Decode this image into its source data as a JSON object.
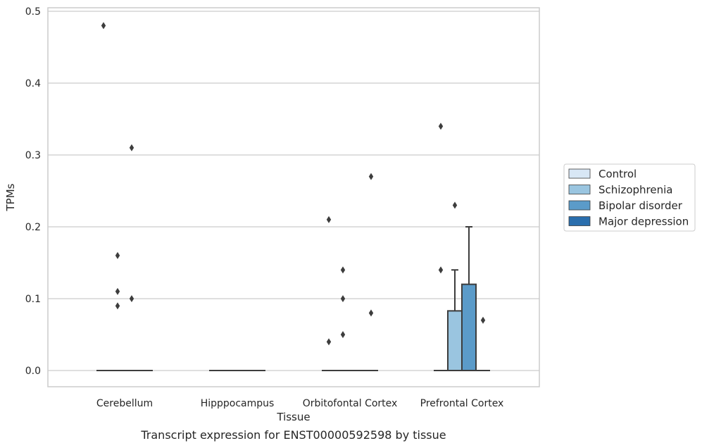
{
  "chart_data": {
    "type": "box",
    "title": "",
    "caption": "Transcript expression for ENST00000592598 by tissue",
    "xlabel": "Tissue",
    "ylabel": "TPMs",
    "categories": [
      "Cerebellum",
      "Hipppocampus",
      "Orbitofontal Cortex",
      "Prefrontal Cortex"
    ],
    "ylim": [
      -0.023,
      0.505
    ],
    "yticks": [
      0.0,
      0.1,
      0.2,
      0.3,
      0.4,
      0.5
    ],
    "ytick_labels": [
      "0.0",
      "0.1",
      "0.2",
      "0.3",
      "0.4",
      "0.5"
    ],
    "grid": true,
    "legend_position": "right",
    "series": [
      {
        "name": "Control",
        "color": "#d8e7f5",
        "boxes": [
          {
            "category": "Cerebellum",
            "q1": 0,
            "median": 0,
            "q3": 0,
            "whisker_low": 0,
            "whisker_high": 0,
            "outliers": [
              0.48
            ]
          },
          {
            "category": "Hipppocampus",
            "q1": 0,
            "median": 0,
            "q3": 0,
            "whisker_low": 0,
            "whisker_high": 0,
            "outliers": []
          },
          {
            "category": "Orbitofontal Cortex",
            "q1": 0,
            "median": 0,
            "q3": 0,
            "whisker_low": 0,
            "whisker_high": 0,
            "outliers": [
              0.04,
              0.21
            ]
          },
          {
            "category": "Prefrontal Cortex",
            "q1": 0,
            "median": 0,
            "q3": 0,
            "whisker_low": 0,
            "whisker_high": 0,
            "outliers": [
              0.14,
              0.34
            ]
          }
        ]
      },
      {
        "name": "Schizophrenia",
        "color": "#9ac5e0",
        "boxes": [
          {
            "category": "Cerebellum",
            "q1": 0,
            "median": 0,
            "q3": 0,
            "whisker_low": 0,
            "whisker_high": 0,
            "outliers": [
              0.09,
              0.11,
              0.16
            ]
          },
          {
            "category": "Hipppocampus",
            "q1": 0,
            "median": 0,
            "q3": 0,
            "whisker_low": 0,
            "whisker_high": 0,
            "outliers": []
          },
          {
            "category": "Orbitofontal Cortex",
            "q1": 0,
            "median": 0,
            "q3": 0,
            "whisker_low": 0,
            "whisker_high": 0,
            "outliers": [
              0.05,
              0.1,
              0.14
            ]
          },
          {
            "category": "Prefrontal Cortex",
            "q1": 0,
            "median": 0,
            "q3": 0.083,
            "whisker_low": 0,
            "whisker_high": 0.14,
            "outliers": [
              0.23
            ]
          }
        ]
      },
      {
        "name": "Bipolar disorder",
        "color": "#5b9bc9",
        "boxes": [
          {
            "category": "Cerebellum",
            "q1": 0,
            "median": 0,
            "q3": 0,
            "whisker_low": 0,
            "whisker_high": 0,
            "outliers": [
              0.1,
              0.31
            ]
          },
          {
            "category": "Hipppocampus",
            "q1": 0,
            "median": 0,
            "q3": 0,
            "whisker_low": 0,
            "whisker_high": 0,
            "outliers": []
          },
          {
            "category": "Orbitofontal Cortex",
            "q1": 0,
            "median": 0,
            "q3": 0,
            "whisker_low": 0,
            "whisker_high": 0,
            "outliers": []
          },
          {
            "category": "Prefrontal Cortex",
            "q1": 0,
            "median": 0,
            "q3": 0.12,
            "whisker_low": 0,
            "whisker_high": 0.2,
            "outliers": []
          }
        ]
      },
      {
        "name": "Major depression",
        "color": "#2a6ead",
        "boxes": [
          {
            "category": "Cerebellum",
            "q1": 0,
            "median": 0,
            "q3": 0,
            "whisker_low": 0,
            "whisker_high": 0,
            "outliers": []
          },
          {
            "category": "Hipppocampus",
            "q1": 0,
            "median": 0,
            "q3": 0,
            "whisker_low": 0,
            "whisker_high": 0,
            "outliers": []
          },
          {
            "category": "Orbitofontal Cortex",
            "q1": 0,
            "median": 0,
            "q3": 0,
            "whisker_low": 0,
            "whisker_high": 0,
            "outliers": [
              0.08,
              0.27
            ]
          },
          {
            "category": "Prefrontal Cortex",
            "q1": 0,
            "median": 0,
            "q3": 0,
            "whisker_low": 0,
            "whisker_high": 0,
            "outliers": [
              0.07
            ]
          }
        ]
      }
    ]
  }
}
